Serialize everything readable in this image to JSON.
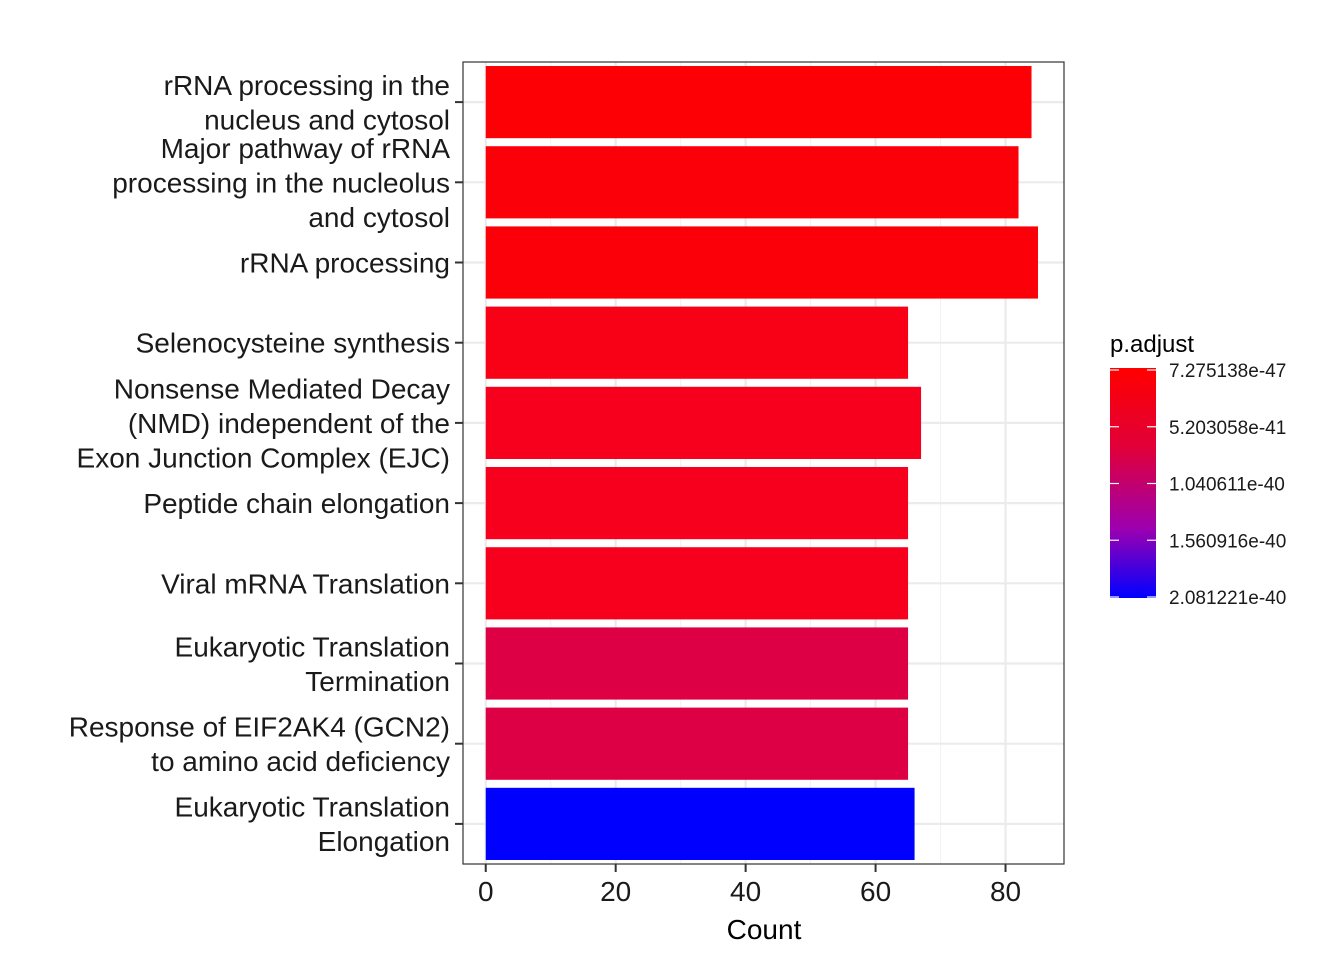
{
  "chart_data": {
    "type": "bar",
    "orientation": "horizontal",
    "xlabel": "Count",
    "ylabel": "",
    "xlim": [
      -3.5,
      89
    ],
    "x_ticks": [
      0,
      20,
      40,
      60,
      80
    ],
    "x_tick_labels": [
      "0",
      "20",
      "40",
      "60",
      "80"
    ],
    "grid": true,
    "categories": [
      [
        "rRNA processing in the",
        "nucleus and cytosol"
      ],
      [
        "Major pathway of rRNA",
        "processing in the nucleolus",
        "and cytosol"
      ],
      [
        "rRNA processing"
      ],
      [
        "Selenocysteine synthesis"
      ],
      [
        "Nonsense Mediated Decay",
        "(NMD) independent of the",
        "Exon Junction Complex (EJC)"
      ],
      [
        "Peptide chain elongation"
      ],
      [
        "Viral mRNA Translation"
      ],
      [
        "Eukaryotic Translation",
        "Termination"
      ],
      [
        "Response of EIF2AK4 (GCN2)",
        "to amino acid deficiency"
      ],
      [
        "Eukaryotic Translation",
        "Elongation"
      ]
    ],
    "values": [
      84,
      82,
      85,
      65,
      67,
      65,
      65,
      65,
      65,
      66
    ],
    "colors": [
      "#fc0006",
      "#fb0009",
      "#fb0009",
      "#f80015",
      "#f6001d",
      "#f6001d",
      "#f6001d",
      "#dd0044",
      "#dd0044",
      "#0000ff"
    ],
    "legend": {
      "title": "p.adjust",
      "position": "right",
      "labels": [
        "7.275138e-47",
        "5.203058e-41",
        "1.040611e-40",
        "1.560916e-40",
        "2.081221e-40"
      ],
      "color_low": "#ff0000",
      "color_high": "#0000ff"
    }
  }
}
